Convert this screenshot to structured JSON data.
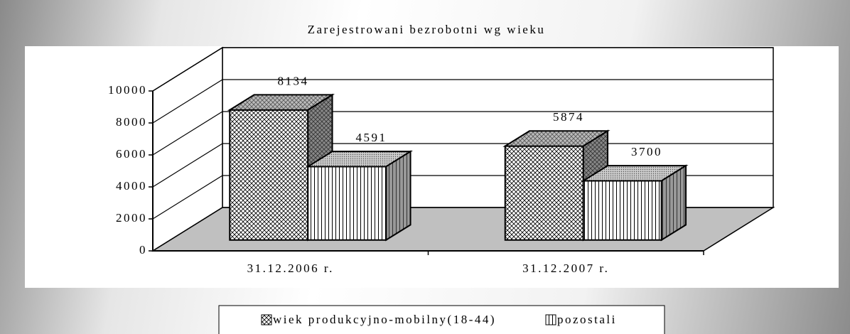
{
  "chart_data": {
    "type": "bar3d",
    "title": "Zarejestrowani bezrobotni wg wieku",
    "categories": [
      "31.12.2006 r.",
      "31.12.2007 r."
    ],
    "series": [
      {
        "name": "wiek produkcyjno-mobilny(18-44)",
        "values": [
          8134,
          5874
        ]
      },
      {
        "name": "pozostali",
        "values": [
          4591,
          3700
        ]
      }
    ],
    "ylim": [
      0,
      10000
    ],
    "yticks": [
      0,
      2000,
      4000,
      6000,
      8000,
      10000
    ],
    "grid": true,
    "legend": "bottom"
  }
}
